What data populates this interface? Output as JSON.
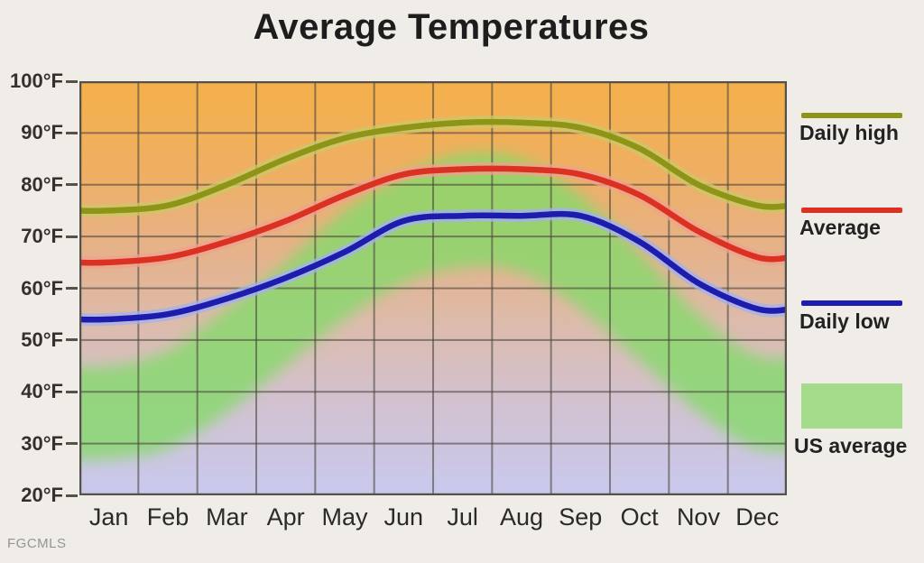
{
  "title": "Average Temperatures",
  "watermark": "FGCMLS",
  "colors": {
    "page_background": "#F0EDE9",
    "grid": "#4A463C",
    "plot_border": "#55524A",
    "title_text": "#1D1D1D",
    "axis_text": "#34312C"
  },
  "chart_data": {
    "type": "line",
    "title": "Average Temperatures",
    "xlabel": "",
    "ylabel": "",
    "unit": "°F",
    "ylim": [
      20,
      100
    ],
    "grid": true,
    "legend_position": "right",
    "categories": [
      "Jan",
      "Feb",
      "Mar",
      "Apr",
      "May",
      "Jun",
      "Jul",
      "Aug",
      "Sep",
      "Oct",
      "Nov",
      "Dec"
    ],
    "y_ticks": [
      "100°F",
      "90°F",
      "80°F",
      "70°F",
      "60°F",
      "50°F",
      "40°F",
      "30°F",
      "20°F"
    ],
    "background_gradient": {
      "description": "vertical temperature gradient of plot background, hot to cold",
      "stops": [
        "#F5B04A",
        "#EFAF63",
        "#E5B28C",
        "#DDBBAB",
        "#D3C1CE",
        "#C8C9EE"
      ],
      "offsets": [
        0,
        0.22,
        0.42,
        0.58,
        0.76,
        1
      ]
    },
    "series": [
      {
        "name": "Daily high",
        "type": "line",
        "color": "#8E9418",
        "halo": "#C9CA67",
        "values": [
          75,
          76,
          80,
          85,
          89,
          91,
          92,
          92,
          91,
          87,
          80,
          76
        ]
      },
      {
        "name": "Average",
        "type": "line",
        "color": "#DB3122",
        "halo": "#EFA18F",
        "values": [
          65,
          66,
          69,
          73,
          78,
          82,
          83,
          83,
          82,
          78,
          71,
          66
        ]
      },
      {
        "name": "Daily low",
        "type": "line",
        "color": "#1D1CAE",
        "halo": "#A3B2EC",
        "values": [
          54,
          55,
          58,
          62,
          67,
          73,
          74,
          74,
          74,
          69,
          61,
          56
        ]
      },
      {
        "name": "US average",
        "type": "band",
        "color": "#86D96C",
        "legend_swatch_color": "#A5DC8C",
        "low": [
          27,
          29,
          36,
          45,
          54,
          61,
          64,
          63,
          56,
          46,
          36,
          29
        ],
        "high": [
          45,
          48,
          56,
          65,
          75,
          82,
          86,
          85,
          78,
          67,
          55,
          47
        ]
      }
    ]
  }
}
